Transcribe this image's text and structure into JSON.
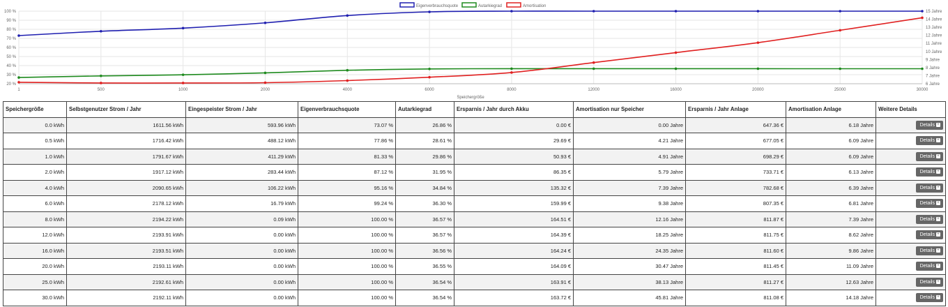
{
  "chart_data": {
    "type": "line",
    "xlabel": "Speichergröße",
    "categories": [
      "1",
      "500",
      "1000",
      "2000",
      "4000",
      "6000",
      "8000",
      "12000",
      "16000",
      "20000",
      "25000",
      "30000"
    ],
    "y_left_ticks": [
      "20 %",
      "30 %",
      "40 %",
      "50 %",
      "60 %",
      "70 %",
      "80 %",
      "90 %",
      "100 %"
    ],
    "y_left_range": [
      20,
      100
    ],
    "y_right_ticks": [
      "6 Jahre",
      "7 Jahre",
      "8 Jahre",
      "9 Jahre",
      "10 Jahre",
      "11 Jahre",
      "12 Jahre",
      "13 Jahre",
      "14 Jahre",
      "15 Jahre"
    ],
    "y_right_range": [
      6,
      15
    ],
    "legend_position": "top",
    "grid": true,
    "series": [
      {
        "name": "Eigenverbrauchsquote",
        "color": "#1f1fb0",
        "axis": "left",
        "values": [
          73.07,
          77.86,
          81.33,
          87.12,
          95.16,
          99.24,
          100,
          100,
          100,
          100,
          100,
          100
        ]
      },
      {
        "name": "Autarkiegrad",
        "color": "#1e8a1e",
        "axis": "left",
        "values": [
          26.86,
          28.61,
          29.86,
          31.95,
          34.84,
          36.3,
          36.57,
          36.57,
          36.56,
          36.55,
          36.54,
          36.54
        ]
      },
      {
        "name": "Amortisation",
        "color": "#e02020",
        "axis": "right",
        "values": [
          6.18,
          6.09,
          6.09,
          6.13,
          6.39,
          6.81,
          7.39,
          8.62,
          9.86,
          11.09,
          12.63,
          14.18
        ]
      }
    ]
  },
  "table": {
    "headers": [
      "Speichergröße",
      "Selbstgenutzer Strom / Jahr",
      "Eingespeister Strom / Jahr",
      "Eigenverbrauchsquote",
      "Autarkiegrad",
      "Ersparnis / Jahr durch Akku",
      "Amortisation nur Speicher",
      "Ersparnis / Jahr Anlage",
      "Amortisation Anlage",
      "Weitere Details"
    ],
    "button_label": "Details",
    "button_icon": "plus-icon",
    "rows": [
      [
        "0.0 kWh",
        "1611.56 kWh",
        "593.96 kWh",
        "73.07 %",
        "26.86 %",
        "0.00 €",
        "0.00 Jahre",
        "647.36 €",
        "6.18 Jahre"
      ],
      [
        "0.5 kWh",
        "1716.42 kWh",
        "488.12 kWh",
        "77.86 %",
        "28.61 %",
        "29.69 €",
        "4.21 Jahre",
        "677.05 €",
        "6.09 Jahre"
      ],
      [
        "1.0 kWh",
        "1791.67 kWh",
        "411.29 kWh",
        "81.33 %",
        "29.86 %",
        "50.93 €",
        "4.91 Jahre",
        "698.29 €",
        "6.09 Jahre"
      ],
      [
        "2.0 kWh",
        "1917.12 kWh",
        "283.44 kWh",
        "87.12 %",
        "31.95 %",
        "86.35 €",
        "5.79 Jahre",
        "733.71 €",
        "6.13 Jahre"
      ],
      [
        "4.0 kWh",
        "2090.65 kWh",
        "106.22 kWh",
        "95.16 %",
        "34.84 %",
        "135.32 €",
        "7.39 Jahre",
        "782.68 €",
        "6.39 Jahre"
      ],
      [
        "6.0 kWh",
        "2178.12 kWh",
        "16.79 kWh",
        "99.24 %",
        "36.30 %",
        "159.99 €",
        "9.38 Jahre",
        "807.35 €",
        "6.81 Jahre"
      ],
      [
        "8.0 kWh",
        "2194.22 kWh",
        "0.09 kWh",
        "100.00 %",
        "36.57 %",
        "164.51 €",
        "12.16 Jahre",
        "811.87 €",
        "7.39 Jahre"
      ],
      [
        "12.0 kWh",
        "2193.91 kWh",
        "0.00 kWh",
        "100.00 %",
        "36.57 %",
        "164.39 €",
        "18.25 Jahre",
        "811.75 €",
        "8.62 Jahre"
      ],
      [
        "16.0 kWh",
        "2193.51 kWh",
        "0.00 kWh",
        "100.00 %",
        "36.56 %",
        "164.24 €",
        "24.35 Jahre",
        "811.60 €",
        "9.86 Jahre"
      ],
      [
        "20.0 kWh",
        "2193.11 kWh",
        "0.00 kWh",
        "100.00 %",
        "36.55 %",
        "164.09 €",
        "30.47 Jahre",
        "811.45 €",
        "11.09 Jahre"
      ],
      [
        "25.0 kWh",
        "2192.61 kWh",
        "0.00 kWh",
        "100.00 %",
        "36.54 %",
        "163.91 €",
        "38.13 Jahre",
        "811.27 €",
        "12.63 Jahre"
      ],
      [
        "30.0 kWh",
        "2192.11 kWh",
        "0.00 kWh",
        "100.00 %",
        "36.54 %",
        "163.72 €",
        "45.81 Jahre",
        "811.08 €",
        "14.18 Jahre"
      ]
    ]
  }
}
